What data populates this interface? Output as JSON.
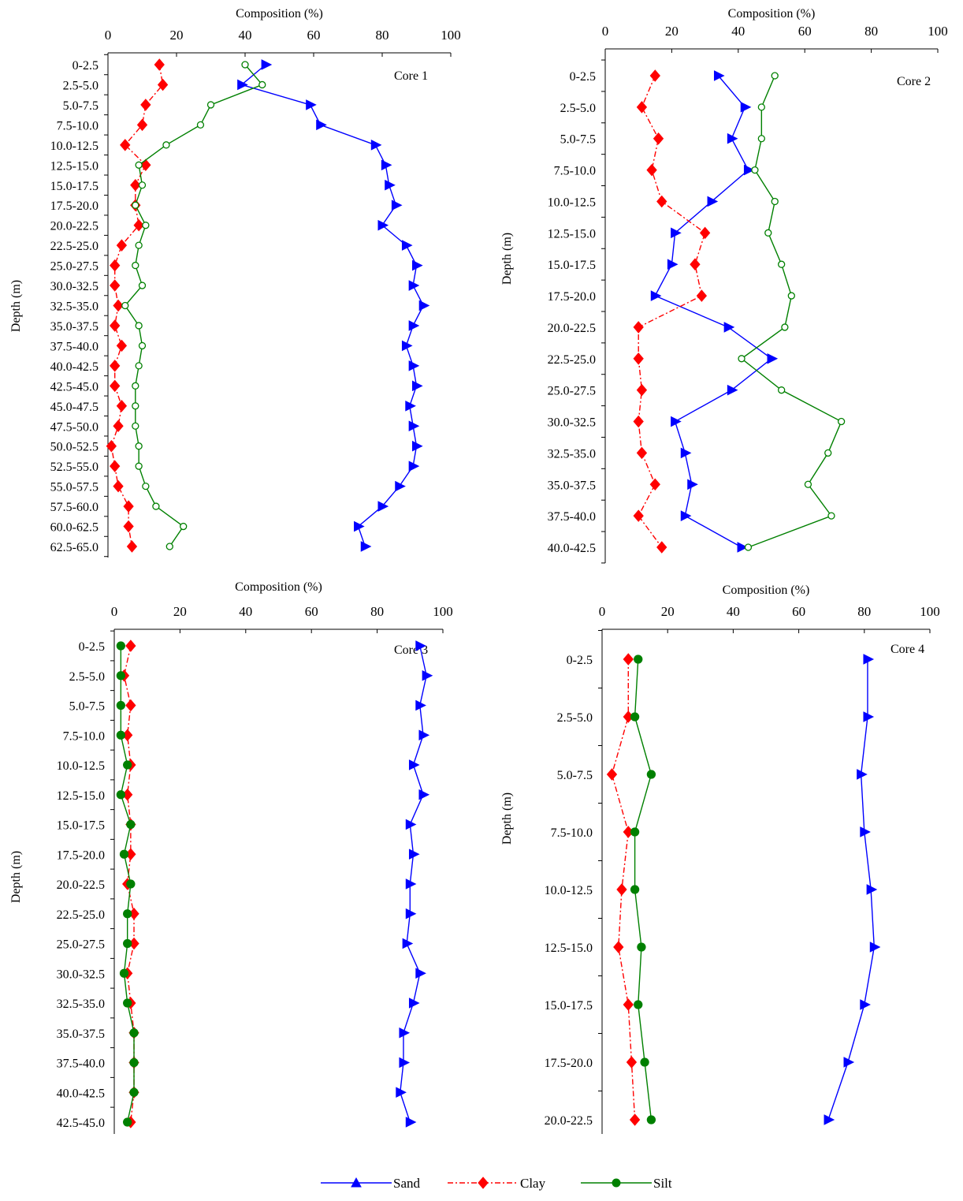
{
  "chart_data": [
    {
      "type": "line",
      "title": "Core 1",
      "xlabel": "Composition (%)",
      "ylabel": "Depth (m)",
      "xlim": [
        0,
        100
      ],
      "xticks": [
        "0",
        "20",
        "40",
        "60",
        "80",
        "100"
      ],
      "x_axis_position": "top",
      "categories": [
        "0-2.5",
        "2.5-5.0",
        "5.0-7.5",
        "7.5-10.0",
        "10.0-12.5",
        "12.5-15.0",
        "15.0-17.5",
        "17.5-20.0",
        "20.0-22.5",
        "22.5-25.0",
        "25.0-27.5",
        "30.0-32.5",
        "32.5-35.0",
        "35.0-37.5",
        "37.5-40.0",
        "40.0-42.5",
        "42.5-45.0",
        "45.0-47.5",
        "47.5-50.0",
        "50.0-52.5",
        "52.5-55.0",
        "55.0-57.5",
        "57.5-60.0",
        "60.0-62.5",
        "62.5-65.0"
      ],
      "series": [
        {
          "name": "Sand",
          "values": [
            46,
            39,
            59,
            62,
            78,
            81,
            82,
            84,
            80,
            87,
            90,
            89,
            92,
            89,
            87,
            89,
            90,
            88,
            89,
            90,
            89,
            85,
            80,
            73,
            75
          ]
        },
        {
          "name": "Clay",
          "values": [
            15,
            16,
            11,
            10,
            5,
            11,
            8,
            8,
            9,
            4,
            2,
            2,
            3,
            2,
            4,
            2,
            2,
            4,
            3,
            1,
            2,
            3,
            6,
            6,
            7
          ]
        },
        {
          "name": "Silt",
          "values": [
            40,
            45,
            30,
            27,
            17,
            9,
            10,
            8,
            11,
            9,
            8,
            10,
            5,
            9,
            10,
            9,
            8,
            8,
            8,
            9,
            9,
            11,
            14,
            22,
            18
          ]
        }
      ]
    },
    {
      "type": "line",
      "title": "Core 2",
      "xlabel": "Composition (%)",
      "ylabel": "Depth (m)",
      "xlim": [
        0,
        100
      ],
      "xticks": [
        "0",
        "20",
        "40",
        "60",
        "80",
        "100"
      ],
      "x_axis_position": "top",
      "categories": [
        "0-2.5",
        "2.5-5.0",
        "5.0-7.5",
        "7.5-10.0",
        "10.0-12.5",
        "12.5-15.0",
        "15.0-17.5",
        "17.5-20.0",
        "20.0-22.5",
        "22.5-25.0",
        "25.0-27.5",
        "30.0-32.5",
        "32.5-35.0",
        "35.0-37.5",
        "37.5-40.0",
        "40.0-42.5"
      ],
      "series": [
        {
          "name": "Sand",
          "values": [
            34,
            42,
            38,
            43,
            32,
            21,
            20,
            15,
            37,
            50,
            38,
            21,
            24,
            26,
            24,
            41
          ]
        },
        {
          "name": "Clay",
          "values": [
            15,
            11,
            16,
            14,
            17,
            30,
            27,
            29,
            10,
            10,
            11,
            10,
            11,
            15,
            10,
            17
          ]
        },
        {
          "name": "Silt",
          "values": [
            51,
            47,
            47,
            45,
            51,
            49,
            53,
            56,
            54,
            41,
            53,
            71,
            67,
            61,
            68,
            43
          ]
        }
      ]
    },
    {
      "type": "line",
      "title": "Core 3",
      "xlabel": "Composition (%)",
      "ylabel": "Depth (m)",
      "xlim": [
        0,
        100
      ],
      "xticks": [
        "0",
        "20",
        "40",
        "60",
        "80",
        "100"
      ],
      "x_axis_position": "top",
      "categories": [
        "0-2.5",
        "2.5-5.0",
        "5.0-7.5",
        "7.5-10.0",
        "10.0-12.5",
        "12.5-15.0",
        "15.0-17.5",
        "17.5-20.0",
        "20.0-22.5",
        "22.5-25.0",
        "25.0-27.5",
        "30.0-32.5",
        "32.5-35.0",
        "35.0-37.5",
        "37.5-40.0",
        "40.0-42.5",
        "42.5-45.0"
      ],
      "series": [
        {
          "name": "Sand",
          "values": [
            93,
            95,
            93,
            94,
            91,
            94,
            90,
            91,
            90,
            90,
            89,
            93,
            91,
            88,
            88,
            87,
            90
          ]
        },
        {
          "name": "Clay",
          "values": [
            5,
            3,
            5,
            4,
            5,
            4,
            5,
            5,
            4,
            6,
            6,
            4,
            5,
            6,
            6,
            6,
            5
          ]
        },
        {
          "name": "Silt",
          "values": [
            2,
            2,
            2,
            2,
            4,
            2,
            5,
            3,
            5,
            4,
            4,
            3,
            4,
            6,
            6,
            6,
            4
          ]
        }
      ]
    },
    {
      "type": "line",
      "title": "Core 4",
      "xlabel": "Composition (%)",
      "ylabel": "Depth (m)",
      "xlim": [
        0,
        100
      ],
      "xticks": [
        "0",
        "20",
        "40",
        "60",
        "80",
        "100"
      ],
      "x_axis_position": "top",
      "categories": [
        "0-2.5",
        "2.5-5.0",
        "5.0-7.5",
        "7.5-10.0",
        "10.0-12.5",
        "12.5-15.0",
        "15.0-17.5",
        "17.5-20.0",
        "20.0-22.5"
      ],
      "series": [
        {
          "name": "Sand",
          "values": [
            81,
            81,
            79,
            80,
            82,
            83,
            80,
            75,
            69
          ]
        },
        {
          "name": "Clay",
          "values": [
            8,
            8,
            3,
            8,
            6,
            5,
            8,
            9,
            10
          ]
        },
        {
          "name": "Silt",
          "values": [
            11,
            10,
            15,
            10,
            10,
            12,
            11,
            13,
            15
          ]
        }
      ]
    }
  ],
  "legend": {
    "position": "bottom-center",
    "items": [
      {
        "label": "Sand",
        "color": "#0000ff",
        "marker": "triangle",
        "dash": "solid"
      },
      {
        "label": "Clay",
        "color": "#ff0000",
        "marker": "diamond",
        "dash": "dash-dot"
      },
      {
        "label": "Silt",
        "color": "#008000",
        "marker": "circle",
        "dash": "solid"
      }
    ]
  },
  "series_styles": {
    "Sand": {
      "color": "#0000ff",
      "marker": "triangle",
      "dash": ""
    },
    "Clay": {
      "color": "#ff0000",
      "marker": "diamond",
      "dash": "7,3,2,3"
    },
    "Silt": {
      "color": "#008000",
      "marker": "circle",
      "dash": ""
    }
  },
  "marker_fill": {
    "Core 1": {
      "Silt": "open"
    },
    "Core 2": {
      "Silt": "open"
    },
    "Core 3": {
      "Silt": "filled"
    },
    "Core 4": {
      "Silt": "filled"
    }
  }
}
